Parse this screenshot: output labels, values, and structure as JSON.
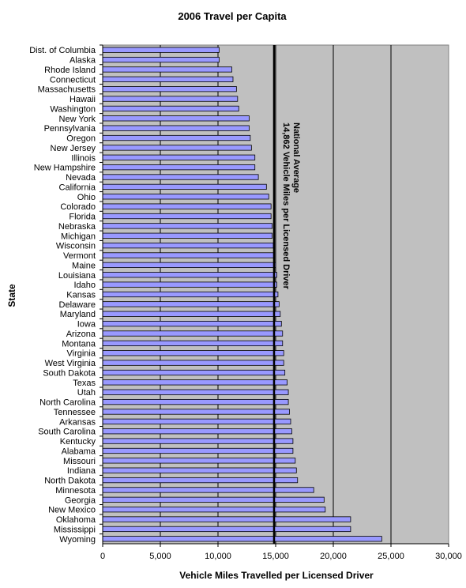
{
  "chart_data": {
    "type": "bar",
    "orientation": "horizontal",
    "title": "2006 Travel per Capita",
    "xlabel": "Vehicle Miles Travelled per Licensed Driver",
    "ylabel": "State",
    "xlim": [
      0,
      30000
    ],
    "x_ticks": [
      0,
      5000,
      10000,
      15000,
      20000,
      25000,
      30000
    ],
    "x_tick_labels": [
      "0",
      "5,000",
      "10,000",
      "15,000",
      "20,000",
      "25,000",
      "30,000"
    ],
    "gridlines": "vertical-major",
    "plot_background": "#C0C0C0",
    "bar_color": "#9999FF",
    "categories": [
      "Dist. of Columbia",
      "Alaska",
      "Rhode Island",
      "Connecticut",
      "Massachusetts",
      "Hawaii",
      "Washington",
      "New York",
      "Pennsylvania",
      "Oregon",
      "New Jersey",
      "Illinois",
      "New Hampshire",
      "Nevada",
      "California",
      "Ohio",
      "Colorado",
      "Florida",
      "Nebraska",
      "Michigan",
      "Wisconsin",
      "Vermont",
      "Maine",
      "Louisiana",
      "Idaho",
      "Kansas",
      "Delaware",
      "Maryland",
      "Iowa",
      "Arizona",
      "Montana",
      "Virginia",
      "West Virginia",
      "South Dakota",
      "Texas",
      "Utah",
      "North Carolina",
      "Tennessee",
      "Arkansas",
      "South Carolina",
      "Kentucky",
      "Alabama",
      "Missouri",
      "Indiana",
      "North Dakota",
      "Minnesota",
      "Georgia",
      "New Mexico",
      "Oklahoma",
      "Mississippi",
      "Wyoming"
    ],
    "values": [
      10100,
      10100,
      11200,
      11300,
      11600,
      11700,
      11800,
      12700,
      12700,
      12800,
      12900,
      13200,
      13200,
      13500,
      14200,
      14400,
      14600,
      14600,
      14700,
      14700,
      14800,
      14900,
      15000,
      15100,
      15100,
      15200,
      15300,
      15400,
      15500,
      15600,
      15600,
      15700,
      15700,
      15800,
      16000,
      16100,
      16100,
      16200,
      16300,
      16400,
      16500,
      16500,
      16700,
      16800,
      16900,
      18300,
      19200,
      19300,
      21500,
      21500,
      24200
    ],
    "reference_line": {
      "value": 14862,
      "label_line1": "National Average",
      "label_line2": "14,862 Vehicle Miles per Licensed Driver"
    }
  }
}
